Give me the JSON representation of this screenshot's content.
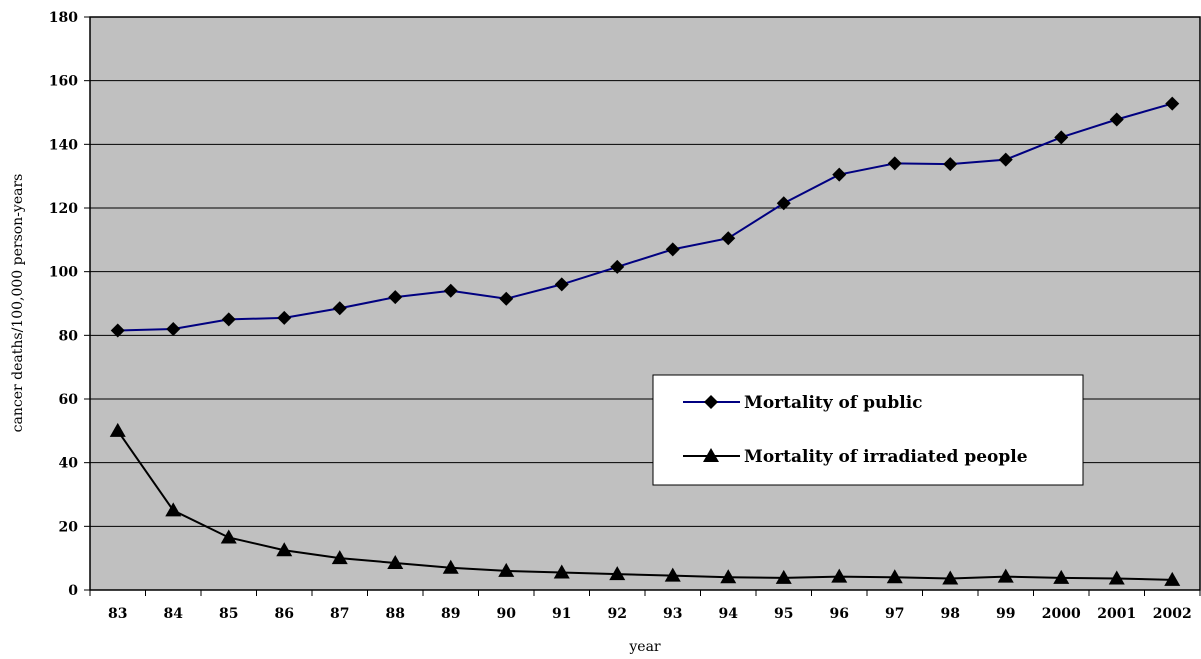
{
  "chart_data": {
    "type": "line",
    "title": "",
    "xlabel": "year",
    "ylabel": "cancer deaths/100,000 person-years",
    "ylim": [
      0,
      180
    ],
    "yticks": [
      0,
      20,
      40,
      60,
      80,
      100,
      120,
      140,
      160,
      180
    ],
    "grid": "horizontal",
    "background": "#c0c0c0",
    "legend_position": "center-right",
    "categories": [
      "83",
      "84",
      "85",
      "86",
      "87",
      "88",
      "89",
      "90",
      "91",
      "92",
      "93",
      "94",
      "95",
      "96",
      "97",
      "98",
      "99",
      "2000",
      "2001",
      "2002"
    ],
    "series": [
      {
        "name": "Mortality of public",
        "marker": "diamond",
        "color": "#000080",
        "marker_color": "#000000",
        "values": [
          81.5,
          82,
          85,
          85.5,
          88.5,
          92,
          94,
          91.5,
          96,
          101.5,
          107,
          110.5,
          121.5,
          130.5,
          134,
          133.8,
          135.2,
          142.2,
          147.8,
          152.8
        ]
      },
      {
        "name": "Mortality of irradiated people",
        "marker": "triangle",
        "color": "#000000",
        "marker_color": "#000000",
        "values": [
          50,
          25,
          16.5,
          12.5,
          10,
          8.5,
          7,
          6,
          5.5,
          5,
          4.5,
          4,
          3.8,
          4.2,
          4,
          3.6,
          4.2,
          3.8,
          3.6,
          3.2
        ]
      }
    ]
  }
}
